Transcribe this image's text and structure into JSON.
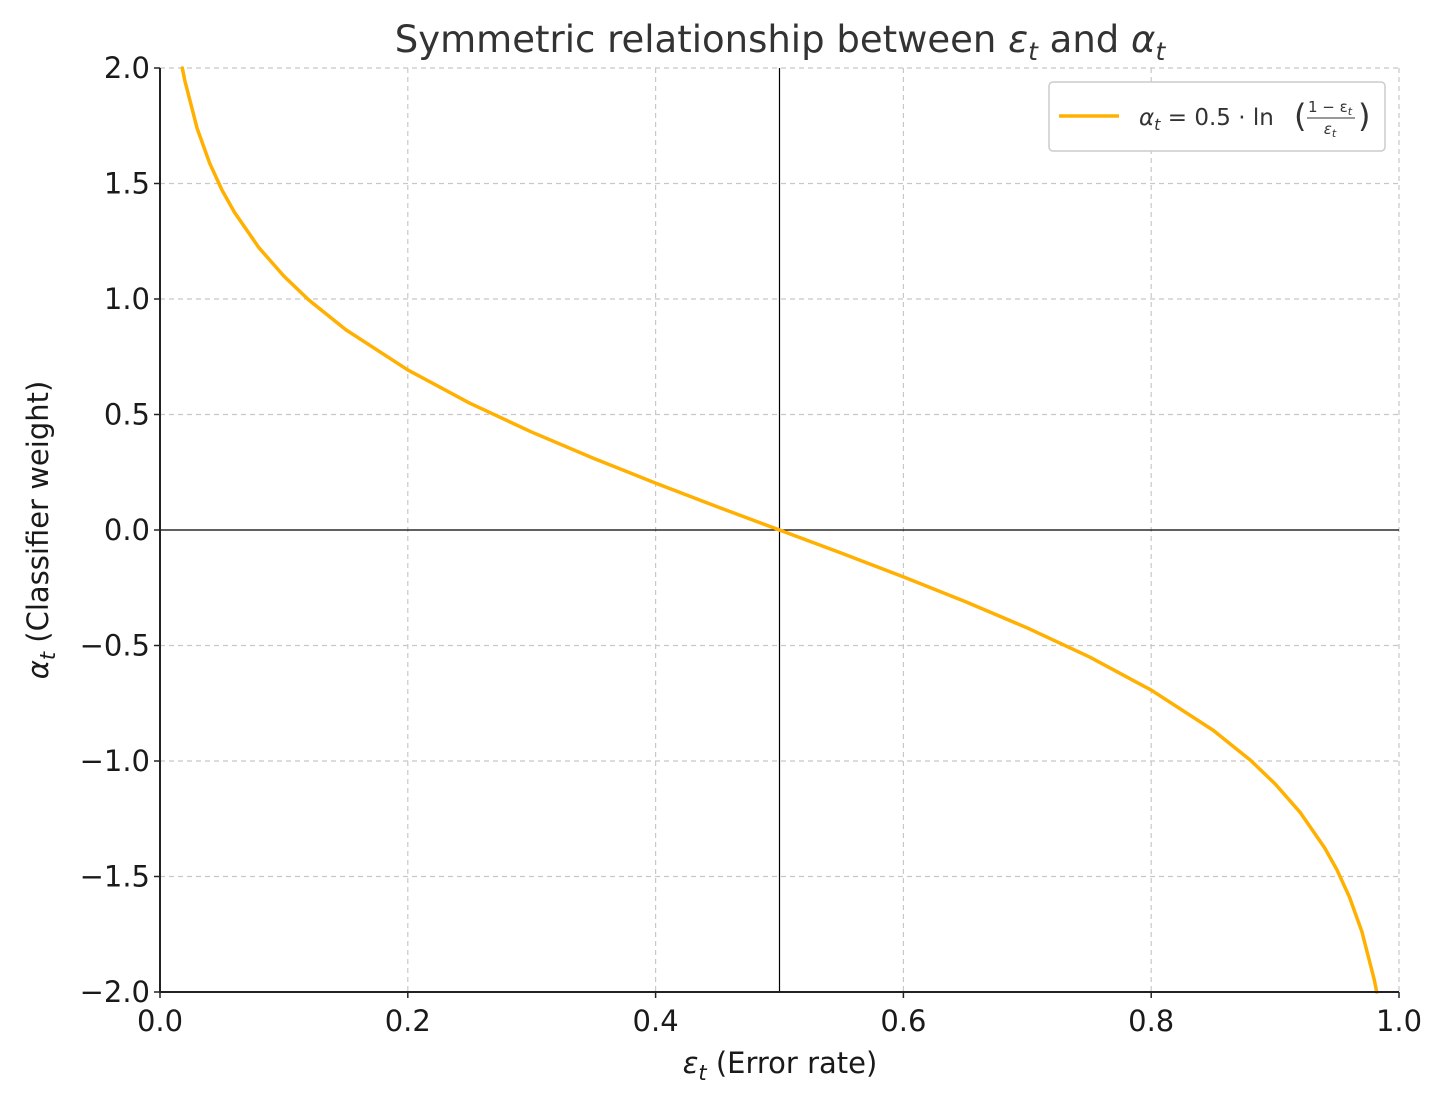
{
  "chart_data": {
    "type": "line",
    "title_parts": {
      "text": "Symmetric relationship between ",
      "sym1": "ε",
      "sub1": "t",
      "mid": " and ",
      "sym2": "α",
      "sub2": "t"
    },
    "xlabel_parts": {
      "sym": "ε",
      "sub": "t",
      "text": " (Error rate)"
    },
    "ylabel_parts": {
      "sym": "α",
      "sub": "t",
      "text": " (Classifier weight)"
    },
    "xlim": [
      0.0,
      1.0
    ],
    "ylim": [
      -2.0,
      2.0
    ],
    "xticks": [
      0.0,
      0.2,
      0.4,
      0.6,
      0.8,
      1.0
    ],
    "xtick_labels": [
      "0.0",
      "0.2",
      "0.4",
      "0.6",
      "0.8",
      "1.0"
    ],
    "yticks": [
      -2.0,
      -1.5,
      -1.0,
      -0.5,
      0.0,
      0.5,
      1.0,
      1.5,
      2.0
    ],
    "ytick_labels": [
      "−2.0",
      "−1.5",
      "−1.0",
      "−0.5",
      "0.0",
      "0.5",
      "1.0",
      "1.5",
      "2.0"
    ],
    "grid": true,
    "reference_lines": {
      "horizontal_y": 0.0,
      "vertical_x": 0.5
    },
    "legend_position": "top-right",
    "series": [
      {
        "name": "αt = 0.5 · ln((1 − εt) / εt)",
        "color": "#FFB000",
        "x": [
          0.018,
          0.02,
          0.03,
          0.04,
          0.05,
          0.06,
          0.08,
          0.1,
          0.12,
          0.15,
          0.2,
          0.25,
          0.3,
          0.35,
          0.4,
          0.45,
          0.5,
          0.55,
          0.6,
          0.65,
          0.7,
          0.75,
          0.8,
          0.85,
          0.88,
          0.9,
          0.92,
          0.94,
          0.95,
          0.96,
          0.97,
          0.98,
          0.982
        ],
        "y": [
          2.0,
          1.946,
          1.738,
          1.589,
          1.472,
          1.376,
          1.221,
          1.099,
          0.996,
          0.867,
          0.693,
          0.549,
          0.424,
          0.31,
          0.203,
          0.1,
          0.0,
          -0.1,
          -0.203,
          -0.31,
          -0.424,
          -0.549,
          -0.693,
          -0.867,
          -0.996,
          -1.099,
          -1.221,
          -1.376,
          -1.472,
          -1.589,
          -1.738,
          -1.946,
          -2.0
        ]
      }
    ]
  },
  "legend": {
    "lhs_sym": "α",
    "lhs_sub": "t",
    "eq": " = 0.5 · ln",
    "num": "1 − ε",
    "num_sub": "t",
    "den": "ε",
    "den_sub": "t"
  }
}
